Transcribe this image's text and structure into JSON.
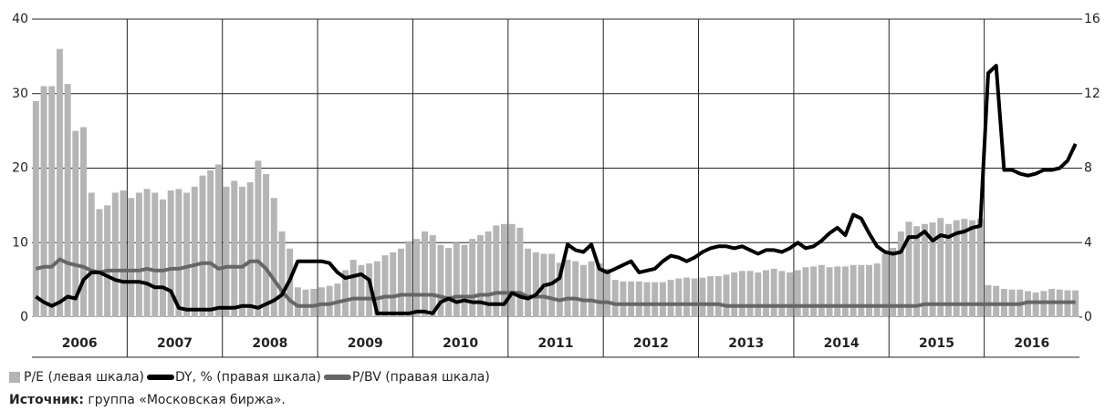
{
  "chart_data": {
    "type": "bar",
    "categories": [
      null,
      null,
      null,
      null,
      null,
      null,
      "2006",
      null,
      null,
      null,
      null,
      null,
      null,
      null,
      null,
      null,
      null,
      null,
      "2007",
      null,
      null,
      null,
      null,
      null,
      null,
      null,
      null,
      null,
      null,
      null,
      "2008",
      null,
      null,
      null,
      null,
      null,
      null,
      null,
      null,
      null,
      null,
      null,
      "2009",
      null,
      null,
      null,
      null,
      null,
      null,
      null,
      null,
      null,
      null,
      null,
      "2010",
      null,
      null,
      null,
      null,
      null,
      null,
      null,
      null,
      null,
      null,
      null,
      "2011",
      null,
      null,
      null,
      null,
      null,
      null,
      null,
      null,
      null,
      null,
      null,
      "2012",
      null,
      null,
      null,
      null,
      null,
      null,
      null,
      null,
      null,
      null,
      null,
      "2013",
      null,
      null,
      null,
      null,
      null,
      null,
      null,
      null,
      null,
      null,
      null,
      "2014",
      null,
      null,
      null,
      null,
      null,
      null,
      null,
      null,
      null,
      null,
      null,
      "2015",
      null,
      null,
      null,
      null,
      null,
      null,
      null,
      null,
      null,
      null,
      null,
      "2016",
      null,
      null,
      null,
      null,
      null
    ],
    "series": [
      {
        "name": "P/E (левая шкала)",
        "type": "bar",
        "axis": "y",
        "color": "#b5b5b5",
        "values": [
          29,
          31,
          31,
          36,
          31.3,
          25,
          25.5,
          16.7,
          14.5,
          15,
          16.7,
          17,
          16,
          16.7,
          17.2,
          16.7,
          15.8,
          17,
          17.2,
          16.7,
          17.5,
          19,
          19.7,
          20.5,
          17.5,
          18.3,
          17.5,
          18.1,
          21,
          19.2,
          16,
          11.5,
          9.2,
          4,
          3.7,
          3.8,
          4,
          4.2,
          4.5,
          6.3,
          7.7,
          7,
          7.2,
          7.5,
          8.3,
          8.7,
          9.2,
          10.2,
          10.5,
          11.5,
          11,
          9.7,
          9.3,
          10,
          9.7,
          10.5,
          11,
          11.5,
          12.3,
          12.5,
          12.5,
          12,
          9.2,
          8.7,
          8.5,
          8.5,
          7.3,
          7.7,
          7.5,
          7,
          7.5,
          7.2,
          6.5,
          5,
          4.8,
          4.8,
          4.8,
          4.7,
          4.7,
          4.7,
          5,
          5.2,
          5.3,
          5.2,
          5.3,
          5.5,
          5.5,
          5.7,
          6,
          6.2,
          6.2,
          6,
          6.3,
          6.5,
          6.2,
          6,
          6.3,
          6.7,
          6.8,
          7,
          6.7,
          6.8,
          6.8,
          7,
          7,
          7,
          7.2,
          8.5,
          9.3,
          11.5,
          12.8,
          12.2,
          12.5,
          12.7,
          13.3,
          12.5,
          13,
          13.2,
          13,
          13.2,
          4.3,
          4.2,
          3.8,
          3.7,
          3.7,
          3.5,
          3.3,
          3.5,
          3.8,
          3.7,
          3.6,
          3.6
        ]
      },
      {
        "name": "DY, % (правая шкала)",
        "type": "line",
        "axis": "y2",
        "color": "#000000",
        "values": [
          1.1,
          0.8,
          0.6,
          0.8,
          1.1,
          1.0,
          2.0,
          2.4,
          2.4,
          2.2,
          2.0,
          1.9,
          1.9,
          1.9,
          1.8,
          1.6,
          1.6,
          1.4,
          0.5,
          0.4,
          0.4,
          0.4,
          0.4,
          0.5,
          0.5,
          0.5,
          0.6,
          0.6,
          0.5,
          0.7,
          0.9,
          1.2,
          2.0,
          3.0,
          3.0,
          3.0,
          3.0,
          2.9,
          2.4,
          2.1,
          2.2,
          2.3,
          2.0,
          0.2,
          0.2,
          0.2,
          0.2,
          0.2,
          0.3,
          0.3,
          0.2,
          0.8,
          1.0,
          0.8,
          0.9,
          0.8,
          0.8,
          0.7,
          0.7,
          0.7,
          1.3,
          1.1,
          1.0,
          1.2,
          1.7,
          1.8,
          2.1,
          3.9,
          3.6,
          3.5,
          3.9,
          2.6,
          2.4,
          2.6,
          2.8,
          3.0,
          2.4,
          2.5,
          2.6,
          3.0,
          3.3,
          3.2,
          3.0,
          3.2,
          3.5,
          3.7,
          3.8,
          3.8,
          3.7,
          3.8,
          3.6,
          3.4,
          3.6,
          3.6,
          3.5,
          3.7,
          4.0,
          3.7,
          3.8,
          4.1,
          4.5,
          4.8,
          4.4,
          5.5,
          5.3,
          4.5,
          3.8,
          3.5,
          3.4,
          3.5,
          4.3,
          4.3,
          4.6,
          4.1,
          4.4,
          4.3,
          4.5,
          4.6,
          4.8,
          4.9,
          13.1,
          13.5,
          7.9,
          7.9,
          7.7,
          7.6,
          7.7,
          7.9,
          7.9,
          8.0,
          8.4,
          9.3
        ]
      },
      {
        "name": "P/BV (правая шкала)",
        "type": "line",
        "axis": "y2",
        "color": "#666666",
        "values": [
          2.6,
          2.7,
          2.7,
          3.1,
          2.9,
          2.8,
          2.7,
          2.5,
          2.4,
          2.5,
          2.5,
          2.5,
          2.5,
          2.5,
          2.6,
          2.5,
          2.5,
          2.6,
          2.6,
          2.7,
          2.8,
          2.9,
          2.9,
          2.6,
          2.7,
          2.7,
          2.7,
          3.0,
          3.0,
          2.6,
          2.0,
          1.4,
          0.9,
          0.6,
          0.6,
          0.6,
          0.7,
          0.7,
          0.8,
          0.9,
          1.0,
          1.0,
          1.0,
          1.0,
          1.1,
          1.1,
          1.2,
          1.2,
          1.2,
          1.2,
          1.2,
          1.1,
          1.0,
          1.1,
          1.1,
          1.1,
          1.2,
          1.2,
          1.3,
          1.3,
          1.3,
          1.3,
          1.1,
          1.1,
          1.1,
          1.0,
          0.9,
          1.0,
          1.0,
          0.9,
          0.9,
          0.8,
          0.8,
          0.7,
          0.7,
          0.7,
          0.7,
          0.7,
          0.7,
          0.7,
          0.7,
          0.7,
          0.7,
          0.7,
          0.7,
          0.7,
          0.7,
          0.6,
          0.6,
          0.6,
          0.6,
          0.6,
          0.6,
          0.6,
          0.6,
          0.6,
          0.6,
          0.6,
          0.6,
          0.6,
          0.6,
          0.6,
          0.6,
          0.6,
          0.6,
          0.6,
          0.6,
          0.6,
          0.6,
          0.6,
          0.6,
          0.6,
          0.7,
          0.7,
          0.7,
          0.7,
          0.7,
          0.7,
          0.7,
          0.7,
          0.7,
          0.7,
          0.7,
          0.7,
          0.7,
          0.8,
          0.8,
          0.8,
          0.8,
          0.8,
          0.8,
          0.8
        ]
      }
    ],
    "ylim": [
      0,
      40
    ],
    "yticks": [
      0,
      10,
      20,
      30,
      40
    ],
    "y2lim": [
      0,
      16
    ],
    "y2ticks": [
      0,
      4,
      8,
      12,
      16
    ],
    "grid": true,
    "source_label": "Источник:",
    "source": "группа «Московская биржа»."
  }
}
